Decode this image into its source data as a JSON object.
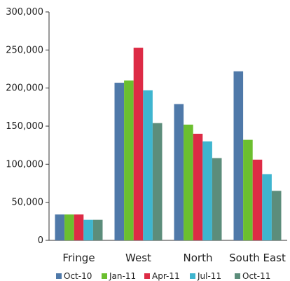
{
  "chart_data": {
    "type": "bar",
    "title": "",
    "xlabel": "",
    "ylabel": "",
    "categories": [
      "Fringe",
      "West",
      "North",
      "South East"
    ],
    "ylim": [
      0,
      300000
    ],
    "yticks": [
      0,
      50000,
      100000,
      150000,
      200000,
      250000,
      300000
    ],
    "ytick_labels": [
      "0",
      "50,000",
      "100,000",
      "150,000",
      "200,000",
      "250,000",
      "300,000"
    ],
    "grid": false,
    "legend_position": "bottom",
    "series": [
      {
        "name": "Oct-10",
        "color": "#4f79a9",
        "values": [
          34000,
          207000,
          179000,
          222000
        ]
      },
      {
        "name": "Jan-11",
        "color": "#6bbf2f",
        "values": [
          34000,
          210000,
          152000,
          132000
        ]
      },
      {
        "name": "Apr-11",
        "color": "#dd2b45",
        "values": [
          34000,
          253000,
          140000,
          106000
        ]
      },
      {
        "name": "Jul-11",
        "color": "#3fb5cf",
        "values": [
          27000,
          197000,
          130000,
          87000
        ]
      },
      {
        "name": "Oct-11",
        "color": "#5c8d7b",
        "values": [
          27000,
          154000,
          108000,
          65000
        ]
      }
    ]
  }
}
